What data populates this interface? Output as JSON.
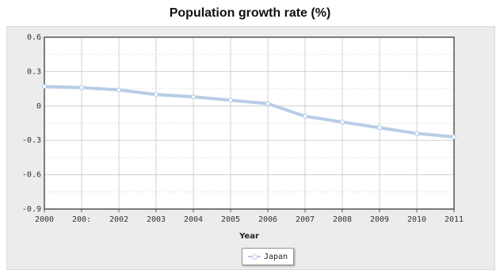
{
  "chart_data": {
    "type": "line",
    "title": "Population growth rate (%)",
    "xlabel": "Year",
    "ylabel": "",
    "x": [
      2000,
      2001,
      2002,
      2003,
      2004,
      2005,
      2006,
      2007,
      2008,
      2009,
      2010,
      2011
    ],
    "x_tick_labels": [
      "2000",
      "200:",
      "2002",
      "2003",
      "2004",
      "2005",
      "2006",
      "2007",
      "2008",
      "2009",
      "2010",
      "2011"
    ],
    "y_ticks": [
      "0.6",
      "0.3",
      "0",
      "-0.3",
      "-0.6",
      "-0.9"
    ],
    "ylim": [
      -0.9,
      0.6
    ],
    "grid": true,
    "legend_position": "bottom-center",
    "series": [
      {
        "name": "Japan",
        "color": "#b8cde6",
        "values": [
          0.17,
          0.16,
          0.14,
          0.1,
          0.08,
          0.05,
          0.02,
          -0.09,
          -0.14,
          -0.19,
          -0.24,
          -0.27
        ]
      }
    ]
  }
}
